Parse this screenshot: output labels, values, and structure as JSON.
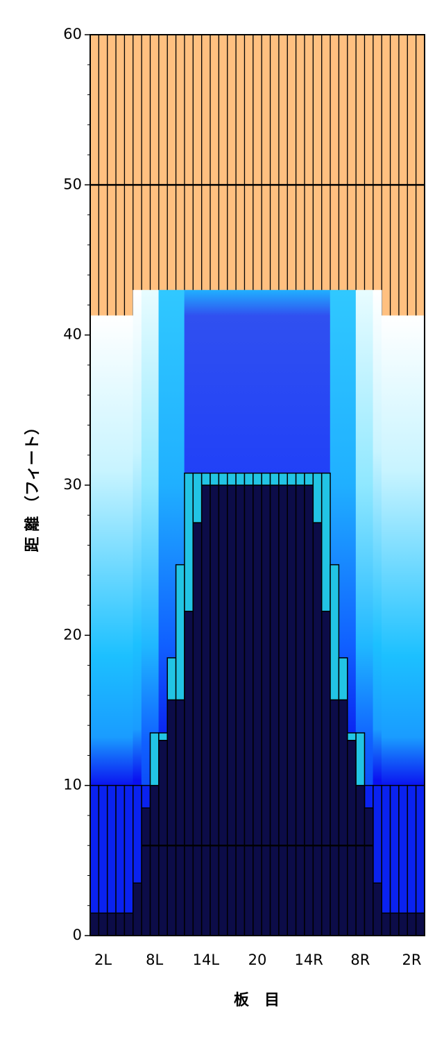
{
  "chart_data": {
    "type": "lane",
    "xlabel": "板　目",
    "ylabel": "距 離 （フィート）",
    "categories": [
      null,
      "2L",
      null,
      null,
      null,
      null,
      null,
      "8L",
      null,
      null,
      null,
      null,
      null,
      "14L",
      null,
      null,
      null,
      null,
      null,
      "20",
      null,
      null,
      null,
      null,
      null,
      "14R",
      null,
      null,
      null,
      null,
      null,
      "8R",
      null,
      null,
      null,
      null,
      null,
      "2R",
      null
    ],
    "pattern_end": [
      41.3,
      41.3,
      41.3,
      41.3,
      41.3,
      43,
      43,
      43,
      43,
      43,
      43,
      43,
      43,
      43,
      43,
      43,
      43,
      43,
      43,
      43,
      43,
      43,
      43,
      43,
      43,
      43,
      43,
      43,
      43,
      43,
      43,
      43,
      43,
      43,
      41.3,
      41.3,
      41.3,
      41.3,
      41.3
    ],
    "outer": [
      10,
      10,
      10,
      10,
      10,
      10,
      10,
      null,
      null,
      null,
      null,
      null,
      null,
      null,
      null,
      null,
      null,
      null,
      null,
      null,
      null,
      null,
      null,
      null,
      null,
      null,
      null,
      null,
      null,
      null,
      null,
      null,
      10,
      10,
      10,
      10,
      10,
      10,
      10
    ],
    "oil": [
      1.5,
      1.5,
      1.5,
      1.5,
      1.5,
      3.5,
      8.5,
      10,
      13,
      15.7,
      15.7,
      21.6,
      27.5,
      30,
      30,
      30,
      30,
      30,
      30,
      30,
      30,
      30,
      30,
      30,
      30,
      30,
      27.5,
      21.6,
      15.7,
      15.7,
      13,
      10,
      8.5,
      3.5,
      1.5,
      1.5,
      1.5,
      1.5,
      1.5
    ],
    "oil_top": [
      null,
      null,
      null,
      null,
      null,
      null,
      null,
      13.5,
      13.5,
      18.5,
      24.7,
      30.8,
      30.8,
      30.8,
      30.8,
      30.8,
      30.8,
      30.8,
      30.8,
      30.8,
      30.8,
      30.8,
      30.8,
      30.8,
      30.8,
      30.8,
      30.8,
      30.8,
      24.7,
      18.5,
      13.5,
      13.5,
      null,
      null,
      null,
      null,
      null,
      null,
      null
    ],
    "reference_lines": [
      6,
      50
    ],
    "ylim": [
      0,
      60
    ],
    "yticks": [
      0,
      10,
      20,
      30,
      40,
      50,
      60
    ],
    "yminorticks": [
      2,
      4,
      6,
      8,
      12,
      14,
      16,
      18,
      22,
      24,
      26,
      28,
      32,
      34,
      36,
      38,
      42,
      44,
      46,
      48,
      52,
      54,
      56,
      58
    ],
    "colors": {
      "dry": "#ffc080",
      "outer": "#0a22f0",
      "oil": "#0c0c48",
      "oil_top": "#22c4e4"
    }
  }
}
